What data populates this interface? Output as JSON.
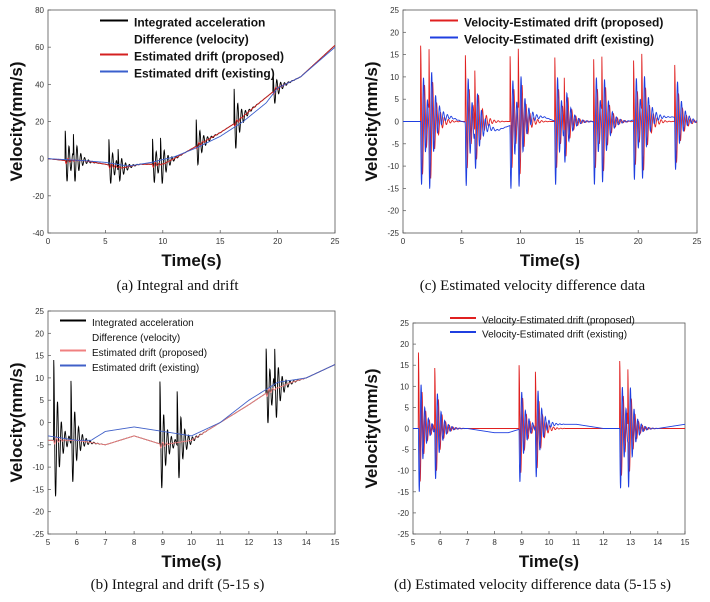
{
  "chart_data": [
    {
      "id": "a",
      "type": "line",
      "caption": "(a) Integral and drift",
      "xlabel": "Time(s)",
      "ylabel": "Velocity(mm/s)",
      "xlim": [
        0,
        25
      ],
      "ylim": [
        -40,
        80
      ],
      "xticks": [
        "0",
        "5",
        "10",
        "15",
        "20",
        "25"
      ],
      "yticks": [
        "-40",
        "-20",
        "0",
        "20",
        "40",
        "60",
        "80"
      ],
      "legend": [
        "Integrated acceleration",
        "Difference (velocity)",
        "Estimated drift  (proposed)",
        "Estimated drift  (existing)"
      ],
      "legend_bold": true,
      "legend_position": "top-left",
      "series": [
        {
          "name": "Integrated acceleration Difference (velocity)",
          "color": "#000000",
          "baseline": [
            [
              0,
              0
            ],
            [
              1.5,
              -1
            ],
            [
              3,
              -1
            ],
            [
              5,
              -3
            ],
            [
              6.5,
              -5
            ],
            [
              8,
              -3
            ],
            [
              10,
              -3
            ],
            [
              11,
              0
            ],
            [
              13,
              7
            ],
            [
              15,
              14
            ],
            [
              16.5,
              20
            ],
            [
              18,
              28
            ],
            [
              20,
              38
            ],
            [
              22,
              44
            ],
            [
              25,
              61
            ]
          ],
          "bursts": [
            [
              1.5,
              16
            ],
            [
              2.2,
              13
            ],
            [
              5.3,
              14
            ],
            [
              6.1,
              12
            ],
            [
              9.1,
              14
            ],
            [
              9.8,
              12
            ],
            [
              12.9,
              15
            ],
            [
              16.2,
              20
            ],
            [
              19.6,
              10
            ]
          ]
        },
        {
          "name": "Estimated drift (proposed)",
          "color": "#d42020",
          "baseline": [
            [
              0,
              0
            ],
            [
              1.5,
              -1
            ],
            [
              3,
              -1
            ],
            [
              5,
              -3
            ],
            [
              6.5,
              -5
            ],
            [
              8,
              -3
            ],
            [
              10,
              -3
            ],
            [
              11,
              0
            ],
            [
              13,
              7
            ],
            [
              15,
              14
            ],
            [
              16.5,
              20
            ],
            [
              18,
              28
            ],
            [
              20,
              38
            ],
            [
              22,
              44
            ],
            [
              25,
              61
            ]
          ],
          "bursts": [
            [
              1.5,
              2
            ],
            [
              5.3,
              2
            ],
            [
              9.1,
              2
            ],
            [
              12.9,
              2
            ],
            [
              16.2,
              2
            ],
            [
              19.6,
              2
            ]
          ]
        },
        {
          "name": "Estimated drift (existing)",
          "color": "#3a5fcd",
          "baseline": [
            [
              0,
              0
            ],
            [
              3,
              -1
            ],
            [
              5,
              -2
            ],
            [
              7,
              -4
            ],
            [
              9,
              -2
            ],
            [
              11,
              1
            ],
            [
              13,
              6
            ],
            [
              15,
              12
            ],
            [
              17,
              20
            ],
            [
              19,
              30
            ],
            [
              20,
              38
            ],
            [
              22,
              44
            ],
            [
              25,
              60
            ]
          ],
          "bursts": []
        }
      ]
    },
    {
      "id": "c",
      "type": "line",
      "caption": "(c) Estimated velocity difference data",
      "xlabel": "Time(s)",
      "ylabel": "Velocity(mm/s)",
      "xlim": [
        0,
        25
      ],
      "ylim": [
        -25,
        25
      ],
      "xticks": [
        "0",
        "5",
        "10",
        "15",
        "20",
        "25"
      ],
      "yticks": [
        "-25",
        "-20",
        "-15",
        "-10",
        "-5",
        "0",
        "5",
        "10",
        "15",
        "20",
        "25"
      ],
      "legend": [
        "Velocity-Estimated drift (proposed)",
        "Velocity-Estimated drift (existing)"
      ],
      "legend_bold": true,
      "legend_position": "top-right",
      "series": [
        {
          "name": "Velocity-Estimated drift (proposed)",
          "color": "#e02020",
          "baseline": [
            [
              0,
              0
            ],
            [
              25,
              0
            ]
          ],
          "bursts": [
            [
              1.5,
              17
            ],
            [
              2.2,
              15
            ],
            [
              5.3,
              15
            ],
            [
              6.1,
              14
            ],
            [
              9.1,
              15
            ],
            [
              9.8,
              14
            ],
            [
              12.9,
              15
            ],
            [
              13.7,
              13
            ],
            [
              16.2,
              15
            ],
            [
              16.9,
              13
            ],
            [
              19.6,
              14
            ],
            [
              20.3,
              13
            ],
            [
              23.1,
              13
            ]
          ]
        },
        {
          "name": "Velocity-Estimated drift (existing)",
          "color": "#1f3fe0",
          "baseline": [
            [
              0,
              0
            ],
            [
              2,
              0
            ],
            [
              3,
              1
            ],
            [
              4,
              1
            ],
            [
              5,
              0
            ],
            [
              7,
              -1
            ],
            [
              8,
              -2
            ],
            [
              9,
              -1
            ],
            [
              10,
              0
            ],
            [
              11,
              1
            ],
            [
              12,
              1
            ],
            [
              13,
              0
            ],
            [
              15,
              0
            ],
            [
              17,
              0
            ],
            [
              19,
              0
            ],
            [
              21,
              1
            ],
            [
              23,
              1
            ],
            [
              25,
              0
            ]
          ],
          "bursts": [
            [
              1.5,
              17
            ],
            [
              2.2,
              15
            ],
            [
              5.3,
              17
            ],
            [
              6.1,
              14
            ],
            [
              9.1,
              17
            ],
            [
              9.8,
              14
            ],
            [
              12.9,
              17
            ],
            [
              13.7,
              13
            ],
            [
              16.2,
              17
            ],
            [
              16.9,
              13
            ],
            [
              19.6,
              16
            ],
            [
              20.3,
              13
            ],
            [
              23.1,
              14
            ]
          ]
        }
      ]
    },
    {
      "id": "b",
      "type": "line",
      "caption": "(b) Integral and drift (5-15 s)",
      "xlabel": "Time(s)",
      "ylabel": "Velocity(mm/s)",
      "xlim": [
        5,
        15
      ],
      "ylim": [
        -25,
        25
      ],
      "xticks": [
        "5",
        "6",
        "7",
        "8",
        "9",
        "10",
        "11",
        "12",
        "13",
        "14",
        "15"
      ],
      "yticks": [
        "-25",
        "-20",
        "-15",
        "-10",
        "-5",
        "0",
        "5",
        "10",
        "15",
        "20",
        "25"
      ],
      "legend": [
        "Integrated acceleration",
        "Difference (velocity)",
        "Estimated drift (proposed)",
        "Estimated drift (existing)"
      ],
      "legend_bold": false,
      "legend_position": "top-left",
      "series": [
        {
          "name": "Integrated acceleration Difference (velocity)",
          "color": "#000000",
          "baseline": [
            [
              5,
              -4
            ],
            [
              6,
              -4
            ],
            [
              7,
              -5
            ],
            [
              8,
              -3
            ],
            [
              9,
              -5
            ],
            [
              10,
              -4
            ],
            [
              11,
              0
            ],
            [
              12,
              4
            ],
            [
              12.7,
              7
            ],
            [
              13.5,
              9
            ],
            [
              14,
              10
            ],
            [
              15,
              13
            ]
          ],
          "bursts": [
            [
              5.2,
              18
            ],
            [
              5.8,
              14
            ],
            [
              8.9,
              14
            ],
            [
              9.5,
              12
            ],
            [
              12.6,
              10
            ],
            [
              12.9,
              9
            ]
          ]
        },
        {
          "name": "Estimated drift (proposed)",
          "color": "#f08080",
          "baseline": [
            [
              5,
              -4
            ],
            [
              6,
              -4
            ],
            [
              7,
              -5
            ],
            [
              8,
              -3
            ],
            [
              9,
              -5
            ],
            [
              10,
              -4
            ],
            [
              11,
              0
            ],
            [
              12,
              4
            ],
            [
              12.7,
              7
            ],
            [
              13.5,
              9
            ],
            [
              14,
              10
            ],
            [
              15,
              13
            ]
          ],
          "bursts": [
            [
              5.2,
              1
            ],
            [
              8.9,
              1
            ],
            [
              12.6,
              1
            ]
          ]
        },
        {
          "name": "Estimated drift (existing)",
          "color": "#4060c8",
          "baseline": [
            [
              5,
              -3
            ],
            [
              6,
              -4
            ],
            [
              6.5,
              -4
            ],
            [
              7,
              -2
            ],
            [
              8,
              -1
            ],
            [
              9,
              -2
            ],
            [
              10,
              -3
            ],
            [
              11,
              0
            ],
            [
              12,
              5
            ],
            [
              13,
              9
            ],
            [
              14,
              10
            ],
            [
              15,
              13
            ]
          ],
          "bursts": []
        }
      ]
    },
    {
      "id": "d",
      "type": "line",
      "caption": "(d) Estimated velocity difference data (5-15 s)",
      "xlabel": "Time(s)",
      "ylabel": "Velocity(mm/s)",
      "xlim": [
        5,
        15
      ],
      "ylim": [
        -25,
        25
      ],
      "xticks": [
        "5",
        "6",
        "7",
        "8",
        "9",
        "10",
        "11",
        "12",
        "13",
        "14",
        "15"
      ],
      "yticks": [
        "-25",
        "-20",
        "-15",
        "-10",
        "-5",
        "0",
        "5",
        "10",
        "15",
        "20",
        "25"
      ],
      "legend": [
        "Velocity-Estimated drift (proposed)",
        "Velocity-Estimated drift (existing)"
      ],
      "legend_bold": false,
      "legend_position": "top-right",
      "series": [
        {
          "name": "Velocity-Estimated drift (proposed)",
          "color": "#e02020",
          "baseline": [
            [
              5,
              0
            ],
            [
              15,
              0
            ]
          ],
          "bursts": [
            [
              5.2,
              18
            ],
            [
              5.8,
              15
            ],
            [
              8.9,
              15
            ],
            [
              9.5,
              14
            ],
            [
              12.6,
              16
            ],
            [
              12.9,
              14
            ]
          ]
        },
        {
          "name": "Velocity-Estimated drift (existing)",
          "color": "#1f3fe0",
          "baseline": [
            [
              5,
              0
            ],
            [
              6,
              0
            ],
            [
              7,
              0
            ],
            [
              8,
              -1
            ],
            [
              8.5,
              -1
            ],
            [
              9,
              0
            ],
            [
              10,
              1
            ],
            [
              11,
              1
            ],
            [
              12,
              0
            ],
            [
              13,
              0
            ],
            [
              14,
              0
            ],
            [
              15,
              1
            ]
          ],
          "bursts": [
            [
              5.2,
              18
            ],
            [
              5.8,
              15
            ],
            [
              8.9,
              15
            ],
            [
              9.5,
              15
            ],
            [
              12.6,
              17
            ],
            [
              12.9,
              16
            ]
          ]
        }
      ]
    }
  ]
}
